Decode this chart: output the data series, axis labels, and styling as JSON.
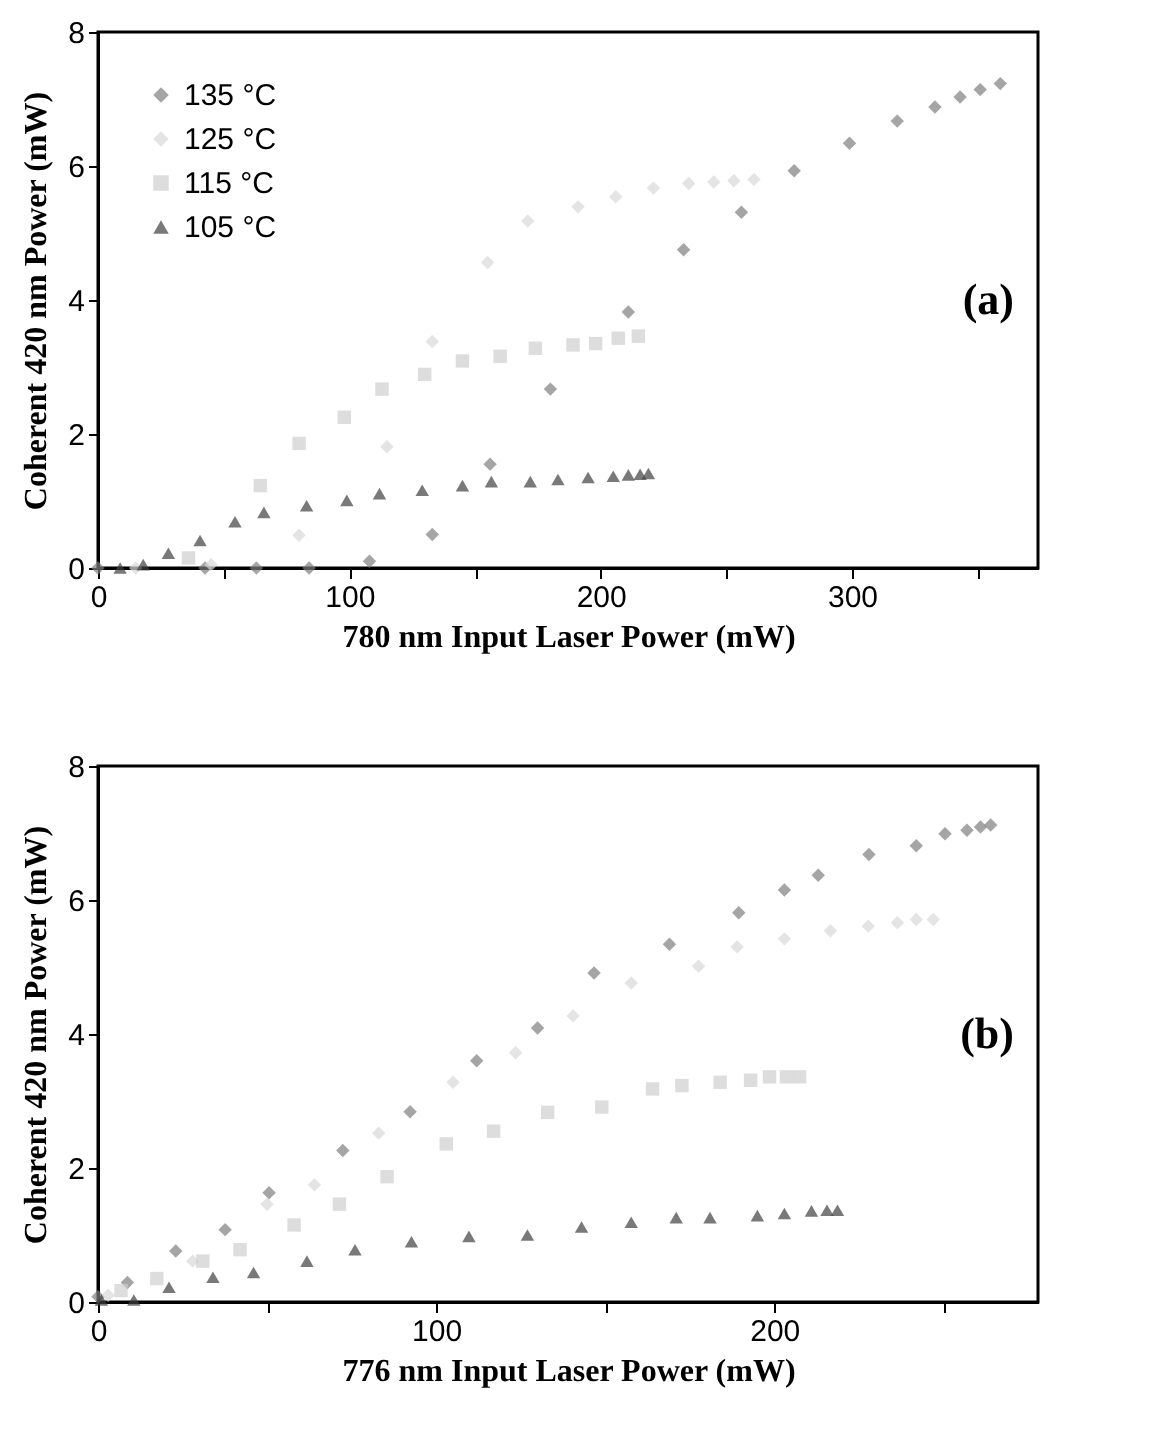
{
  "chart_data": [
    {
      "type": "scatter",
      "xlabel": "780 nm Input Laser Power (mW)",
      "ylabel": "Coherent 420 nm Power (mW)",
      "xlim": [
        0,
        374
      ],
      "ylim": [
        0,
        8
      ],
      "xticks": [
        0,
        {
          "value": 50,
          "label": null
        },
        100,
        {
          "value": 150,
          "label": null
        },
        200,
        {
          "value": 250,
          "label": null
        },
        300,
        {
          "value": 350,
          "label": null
        }
      ],
      "yticks": [
        0,
        2,
        4,
        6,
        8
      ],
      "grid": false,
      "legend": "top left",
      "annotations": [
        "(a)"
      ],
      "series": [
        {
          "name": "135 °C",
          "color": "#7f7f7f",
          "marker": "diamond",
          "x": [
            0,
            42.6,
            63,
            84,
            108,
            133,
            156,
            180,
            211,
            233,
            256,
            277,
            299,
            318,
            333,
            343,
            351,
            359
          ],
          "values": [
            0,
            0,
            0,
            0,
            0.1,
            0.5,
            1.55,
            2.67,
            3.82,
            4.75,
            5.31,
            5.93,
            6.34,
            6.67,
            6.88,
            7.03,
            7.14,
            7.23
          ]
        },
        {
          "name": "125 °C",
          "color": "#d9d9d9",
          "marker": "diamond",
          "x": [
            15,
            45,
            80,
            115,
            133,
            155,
            171,
            191,
            206,
            221,
            235,
            245,
            253,
            261
          ],
          "values": [
            0,
            0.05,
            0.49,
            1.81,
            3.38,
            4.56,
            5.18,
            5.39,
            5.54,
            5.67,
            5.74,
            5.76,
            5.78,
            5.8
          ]
        },
        {
          "name": "115 °C",
          "color": "#cfcfcf",
          "marker": "square",
          "x": [
            36,
            64.6,
            80,
            98,
            113,
            130,
            145,
            160,
            174,
            189,
            198,
            207,
            215
          ],
          "values": [
            0.15,
            1.23,
            1.86,
            2.25,
            2.67,
            2.89,
            3.09,
            3.16,
            3.28,
            3.33,
            3.35,
            3.43,
            3.46
          ]
        },
        {
          "name": "105 °C",
          "color": "#404040",
          "marker": "triangle",
          "x": [
            8.8,
            18,
            28,
            40.6,
            54.5,
            66,
            83,
            99,
            112,
            129,
            145,
            156.5,
            172,
            183,
            195,
            205,
            211,
            215.7,
            219
          ],
          "values": [
            0,
            0.05,
            0.22,
            0.41,
            0.69,
            0.83,
            0.93,
            1.01,
            1.11,
            1.16,
            1.23,
            1.29,
            1.29,
            1.32,
            1.35,
            1.37,
            1.39,
            1.4,
            1.41
          ]
        }
      ]
    },
    {
      "type": "scatter",
      "xlabel": "776 nm Input Laser Power (mW)",
      "ylabel": "Coherent 420 nm Power (mW)",
      "xlim": [
        0,
        278
      ],
      "ylim": [
        0,
        8
      ],
      "xticks": [
        0,
        {
          "value": 50,
          "label": null
        },
        100,
        {
          "value": 150,
          "label": null
        },
        200,
        {
          "value": 250,
          "label": null
        }
      ],
      "yticks": [
        0,
        2,
        4,
        6,
        8
      ],
      "grid": false,
      "legend": "top left",
      "annotations": [
        "(b)"
      ],
      "series": [
        {
          "name": "135 °C",
          "color": "#7f7f7f",
          "marker": "diamond",
          "x": [
            0,
            8.7,
            23,
            37.6,
            50.6,
            72.4,
            92.3,
            112,
            130,
            146.7,
            169,
            189.5,
            203,
            213,
            228,
            242,
            250.5,
            257,
            261,
            264
          ],
          "values": [
            0.08,
            0.29,
            0.76,
            1.08,
            1.63,
            2.26,
            2.84,
            3.6,
            4.09,
            4.91,
            5.34,
            5.81,
            6.15,
            6.37,
            6.68,
            6.81,
            6.99,
            7.04,
            7.09,
            7.12
          ]
        },
        {
          "name": "125 °C",
          "color": "#d9d9d9",
          "marker": "diamond",
          "x": [
            3,
            28,
            50,
            64,
            83,
            105,
            123.5,
            140.5,
            157.7,
            177.6,
            189,
            203,
            216.6,
            227.8,
            236.4,
            242,
            247
          ],
          "values": [
            0.1,
            0.61,
            1.46,
            1.75,
            2.52,
            3.28,
            3.72,
            4.27,
            4.76,
            5.01,
            5.3,
            5.42,
            5.54,
            5.61,
            5.66,
            5.71,
            5.71
          ]
        },
        {
          "name": "115 °C",
          "color": "#cfcfcf",
          "marker": "square",
          "x": [
            6.8,
            17.4,
            31,
            42,
            58,
            71.4,
            85.5,
            103,
            117,
            133,
            149,
            164,
            172.7,
            184,
            193,
            198.6,
            203.6,
            207.5
          ],
          "values": [
            0.17,
            0.35,
            0.61,
            0.78,
            1.15,
            1.46,
            1.87,
            2.36,
            2.55,
            2.83,
            2.91,
            3.18,
            3.23,
            3.28,
            3.31,
            3.36,
            3.36,
            3.36
          ]
        },
        {
          "name": "105 °C",
          "color": "#404040",
          "marker": "triangle",
          "x": [
            1,
            10.6,
            21,
            34,
            46,
            61.8,
            76,
            92.7,
            109.7,
            127,
            143,
            157.7,
            171,
            181,
            195,
            203,
            211,
            215.6,
            218.7
          ],
          "values": [
            0.03,
            0.03,
            0.22,
            0.37,
            0.44,
            0.61,
            0.78,
            0.9,
            0.98,
            1.0,
            1.12,
            1.19,
            1.26,
            1.26,
            1.29,
            1.32,
            1.36,
            1.37,
            1.37
          ]
        }
      ]
    }
  ]
}
